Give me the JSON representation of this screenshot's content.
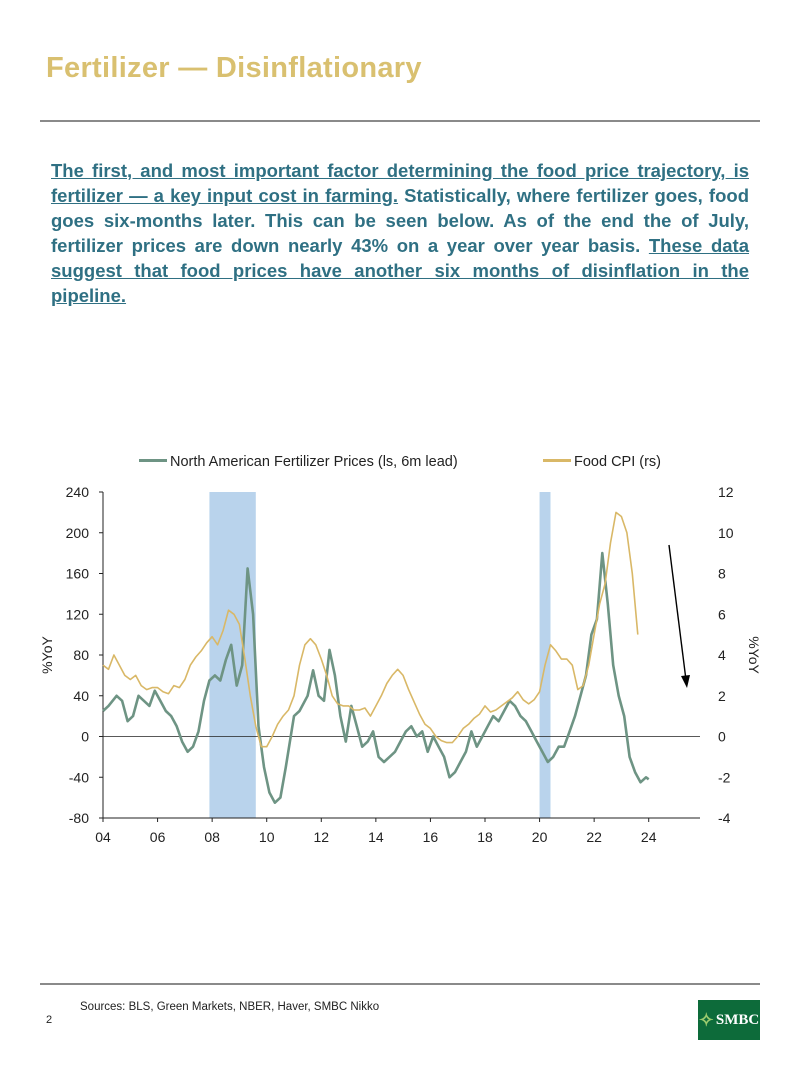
{
  "header": {
    "title": "Fertilizer — Disinflationary"
  },
  "paragraph": {
    "part1_underlined": "The first, and most important factor determining the food price trajectory, is fertilizer — a key input cost in farming.",
    "part2": " Statistically, where fertilizer goes, food goes six-months later. This can be seen below. As of the end the of July, fertilizer prices are down nearly 43% on a year over year basis. ",
    "part3_underlined": "These data suggest that food prices have another six months of disinflation in the pipeline."
  },
  "footer": {
    "sources": "Sources: BLS, Green Markets, NBER, Haver, SMBC Nikko",
    "page_number": "2",
    "logo_text": "SMBC"
  },
  "colors": {
    "title": "#d9c070",
    "text": "#2f7083",
    "fertilizer": "#6e9484",
    "food_cpi": "#d9b867",
    "recession": "#b9d3ec"
  },
  "chart_data": {
    "type": "line",
    "xlabel": "",
    "ylabel_left": "%YoY",
    "ylabel_right": "%YoY",
    "x_ticks": [
      "04",
      "06",
      "08",
      "10",
      "12",
      "14",
      "16",
      "18",
      "20",
      "22",
      "24"
    ],
    "y_left_ticks": [
      "240",
      "200",
      "160",
      "120",
      "80",
      "40",
      "0",
      "-40",
      "-80"
    ],
    "y_right_ticks": [
      "12",
      "10",
      "8",
      "6",
      "4",
      "2",
      "0",
      "-2",
      "-4"
    ],
    "xlim": [
      2004,
      2025
    ],
    "ylim_left": [
      -80,
      240
    ],
    "ylim_right": [
      -4,
      12
    ],
    "legend_position": "top",
    "recessions": [
      [
        2007.9,
        2009.6
      ],
      [
        2020.0,
        2020.4
      ]
    ],
    "series": [
      {
        "name": "North American Fertilizer Prices (ls, 6m lead)",
        "axis": "left",
        "x": [
          2004.0,
          2004.2,
          2004.5,
          2004.7,
          2004.9,
          2005.1,
          2005.3,
          2005.5,
          2005.7,
          2005.9,
          2006.1,
          2006.3,
          2006.5,
          2006.7,
          2006.9,
          2007.1,
          2007.3,
          2007.5,
          2007.7,
          2007.9,
          2008.1,
          2008.3,
          2008.5,
          2008.7,
          2008.9,
          2009.1,
          2009.3,
          2009.5,
          2009.7,
          2009.9,
          2010.1,
          2010.3,
          2010.5,
          2010.7,
          2011.0,
          2011.2,
          2011.5,
          2011.7,
          2011.9,
          2012.1,
          2012.3,
          2012.5,
          2012.7,
          2012.9,
          2013.1,
          2013.3,
          2013.5,
          2013.7,
          2013.9,
          2014.1,
          2014.3,
          2014.5,
          2014.7,
          2014.9,
          2015.1,
          2015.3,
          2015.5,
          2015.7,
          2015.9,
          2016.1,
          2016.3,
          2016.5,
          2016.7,
          2016.9,
          2017.1,
          2017.3,
          2017.5,
          2017.7,
          2017.9,
          2018.1,
          2018.3,
          2018.5,
          2018.7,
          2018.9,
          2019.1,
          2019.3,
          2019.5,
          2019.7,
          2019.9,
          2020.1,
          2020.3,
          2020.5,
          2020.7,
          2020.9,
          2021.1,
          2021.3,
          2021.5,
          2021.7,
          2021.9,
          2022.1,
          2022.3,
          2022.5,
          2022.7,
          2022.9,
          2023.1,
          2023.3,
          2023.5,
          2023.7,
          2023.9,
          2024.0
        ],
        "values": [
          25,
          30,
          40,
          35,
          15,
          20,
          40,
          35,
          30,
          45,
          35,
          25,
          20,
          10,
          -5,
          -15,
          -10,
          5,
          35,
          55,
          60,
          55,
          75,
          90,
          50,
          70,
          165,
          120,
          10,
          -30,
          -55,
          -65,
          -60,
          -30,
          20,
          25,
          40,
          65,
          40,
          35,
          85,
          60,
          20,
          -5,
          30,
          10,
          -10,
          -5,
          5,
          -20,
          -25,
          -20,
          -15,
          -5,
          5,
          10,
          0,
          5,
          -15,
          0,
          -10,
          -20,
          -40,
          -35,
          -25,
          -15,
          5,
          -10,
          0,
          10,
          20,
          15,
          25,
          35,
          30,
          20,
          15,
          5,
          -5,
          -15,
          -25,
          -20,
          -10,
          -10,
          5,
          20,
          40,
          60,
          100,
          115,
          180,
          130,
          70,
          40,
          20,
          -20,
          -35,
          -45,
          -40,
          -42
        ]
      },
      {
        "name": "Food CPI (rs)",
        "axis": "right",
        "x": [
          2004.0,
          2004.2,
          2004.4,
          2004.6,
          2004.8,
          2005.0,
          2005.2,
          2005.4,
          2005.6,
          2005.8,
          2006.0,
          2006.2,
          2006.4,
          2006.6,
          2006.8,
          2007.0,
          2007.2,
          2007.4,
          2007.6,
          2007.8,
          2008.0,
          2008.2,
          2008.4,
          2008.6,
          2008.8,
          2009.0,
          2009.2,
          2009.4,
          2009.6,
          2009.8,
          2010.0,
          2010.2,
          2010.4,
          2010.6,
          2010.8,
          2011.0,
          2011.2,
          2011.4,
          2011.6,
          2011.8,
          2012.0,
          2012.2,
          2012.4,
          2012.6,
          2012.8,
          2013.0,
          2013.2,
          2013.4,
          2013.6,
          2013.8,
          2014.0,
          2014.2,
          2014.4,
          2014.6,
          2014.8,
          2015.0,
          2015.2,
          2015.4,
          2015.6,
          2015.8,
          2016.0,
          2016.2,
          2016.4,
          2016.6,
          2016.8,
          2017.0,
          2017.2,
          2017.4,
          2017.6,
          2017.8,
          2018.0,
          2018.2,
          2018.4,
          2018.6,
          2018.8,
          2019.0,
          2019.2,
          2019.4,
          2019.6,
          2019.8,
          2020.0,
          2020.2,
          2020.4,
          2020.6,
          2020.8,
          2021.0,
          2021.2,
          2021.4,
          2021.6,
          2021.8,
          2022.0,
          2022.2,
          2022.4,
          2022.6,
          2022.8,
          2023.0,
          2023.2,
          2023.4,
          2023.6
        ],
        "values": [
          3.5,
          3.3,
          4.0,
          3.5,
          3.0,
          2.8,
          3.0,
          2.5,
          2.3,
          2.4,
          2.4,
          2.2,
          2.1,
          2.5,
          2.4,
          2.8,
          3.5,
          3.9,
          4.2,
          4.6,
          4.9,
          4.5,
          5.2,
          6.2,
          6.0,
          5.5,
          3.8,
          2.0,
          0.5,
          -0.5,
          -0.5,
          0.0,
          0.6,
          1.0,
          1.3,
          2.0,
          3.5,
          4.5,
          4.8,
          4.5,
          3.8,
          3.0,
          2.0,
          1.6,
          1.5,
          1.5,
          1.3,
          1.3,
          1.4,
          1.0,
          1.5,
          2.0,
          2.6,
          3.0,
          3.3,
          3.0,
          2.3,
          1.7,
          1.1,
          0.6,
          0.4,
          0.0,
          -0.2,
          -0.3,
          -0.3,
          0.0,
          0.4,
          0.6,
          0.9,
          1.1,
          1.5,
          1.2,
          1.3,
          1.5,
          1.7,
          1.9,
          2.2,
          1.8,
          1.6,
          1.8,
          2.2,
          3.5,
          4.5,
          4.2,
          3.8,
          3.8,
          3.5,
          2.3,
          2.5,
          3.5,
          5.0,
          6.5,
          7.5,
          9.5,
          11.0,
          10.8,
          10.0,
          8.0,
          5.0
        ]
      }
    ]
  }
}
